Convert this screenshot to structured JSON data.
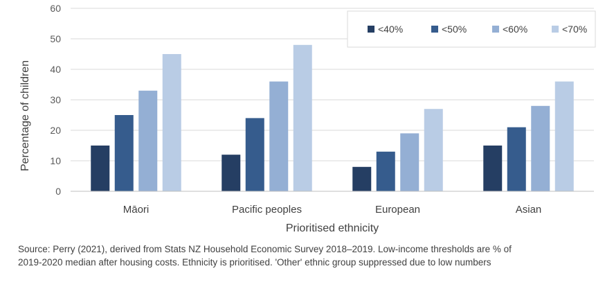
{
  "chart_data": {
    "type": "bar",
    "title": "",
    "xlabel": "Prioritised ethnicity",
    "ylabel": "Percentage of children",
    "ylim": [
      0,
      60
    ],
    "yticks": [
      "0",
      "10",
      "20",
      "30",
      "40",
      "50",
      "60"
    ],
    "grid": true,
    "legend_position": "top-right",
    "categories": [
      "Māori",
      "Pacific peoples",
      "European",
      "Asian"
    ],
    "series": [
      {
        "name": "<40%",
        "color": "#253e63",
        "values": [
          15,
          12,
          8,
          15
        ]
      },
      {
        "name": "<50%",
        "color": "#365c8d",
        "values": [
          25,
          24,
          13,
          21
        ]
      },
      {
        "name": "<60%",
        "color": "#94afd4",
        "values": [
          33,
          36,
          19,
          28
        ]
      },
      {
        "name": "<70%",
        "color": "#b9cce5",
        "values": [
          45,
          48,
          27,
          36
        ]
      }
    ]
  },
  "source_note": "Source: Perry (2021), derived from Stats NZ Household Economic Survey 2018–2019. Low-income thresholds are % of 2019-2020 median after housing costs. Ethnicity is prioritised. 'Other' ethnic group suppressed due to low numbers"
}
